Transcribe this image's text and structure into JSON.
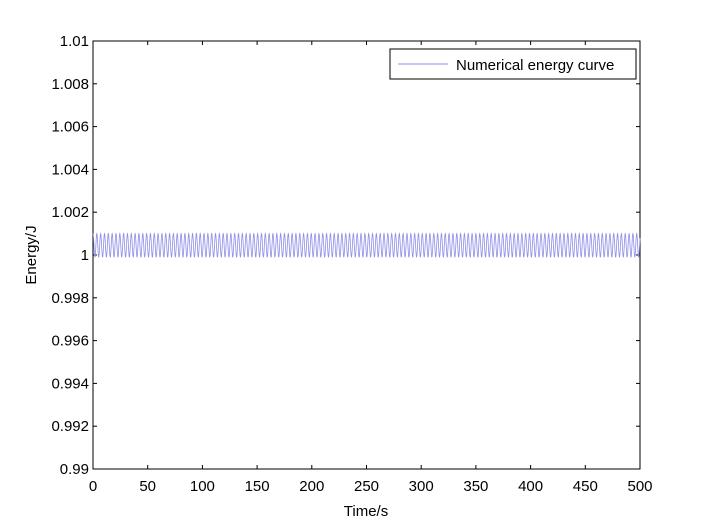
{
  "chart_data": {
    "type": "line",
    "title": "",
    "xlabel": "Time/s",
    "ylabel": "Energy/J",
    "xlim": [
      0,
      500
    ],
    "ylim": [
      0.99,
      1.01
    ],
    "x_ticks": [
      "0",
      "50",
      "100",
      "150",
      "200",
      "250",
      "300",
      "350",
      "400",
      "450",
      "500"
    ],
    "y_ticks": [
      "0.99",
      "0.992",
      "0.994",
      "0.996",
      "0.998",
      "1",
      "1.002",
      "1.004",
      "1.006",
      "1.008",
      "1.01"
    ],
    "grid": false,
    "legend_position": "top-right",
    "series": [
      {
        "name": "Numerical energy curve",
        "color": "#8f8fe8",
        "pattern": "oscillation",
        "x_start": 0,
        "x_end": 500,
        "y_min": 0.9999,
        "y_max": 1.001,
        "period": 3.5
      }
    ]
  }
}
